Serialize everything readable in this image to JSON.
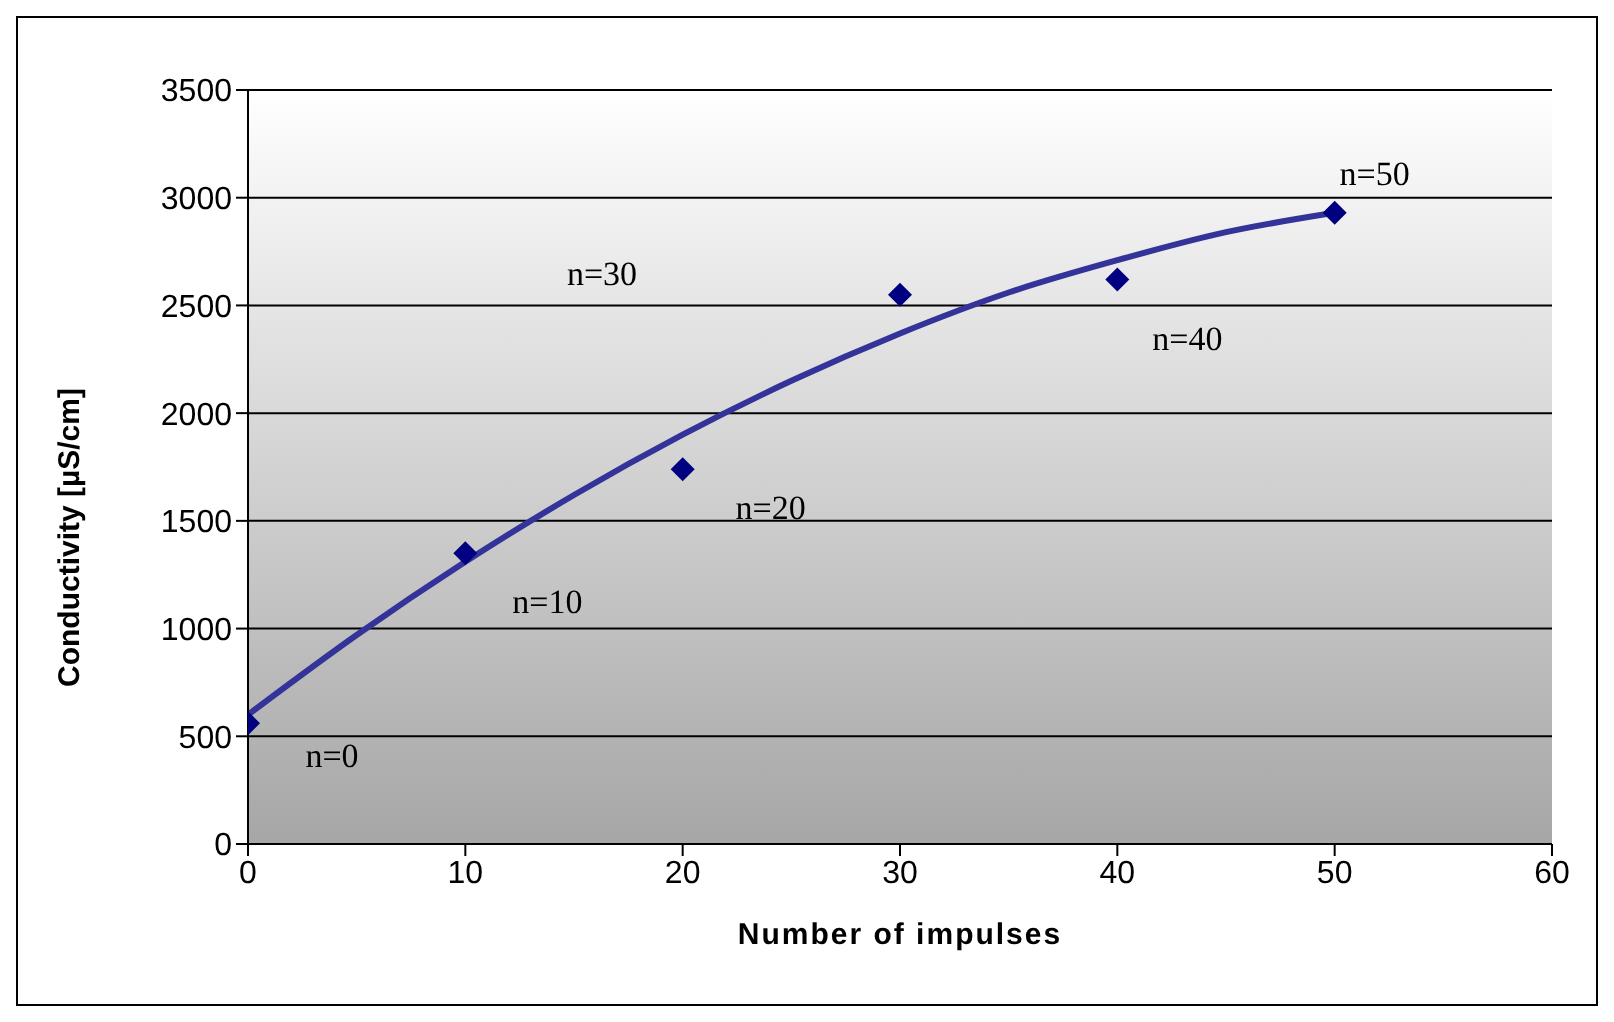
{
  "chart_data": {
    "type": "scatter",
    "xlabel": "Number of impulses",
    "ylabel": "Conductivity [µS/cm]",
    "xlim": [
      0,
      60
    ],
    "xticks": [
      0,
      10,
      20,
      30,
      40,
      50,
      60
    ],
    "ylim": [
      0,
      3500
    ],
    "yticks": [
      0,
      500,
      1000,
      1500,
      2000,
      2500,
      3000,
      3500
    ],
    "grid": "y",
    "legend": false,
    "series": [
      {
        "type": "scatter",
        "color": "#000080",
        "marker": "diamond",
        "x": [
          0,
          10,
          20,
          30,
          40,
          50
        ],
        "values": [
          560,
          1350,
          1740,
          2550,
          2620,
          2930
        ]
      },
      {
        "type": "line",
        "color": "#333399",
        "marker": "none",
        "x": [
          0,
          5,
          10,
          15,
          20,
          25,
          30,
          35,
          40,
          45,
          50
        ],
        "values": [
          600,
          970,
          1310,
          1620,
          1900,
          2150,
          2370,
          2560,
          2710,
          2840,
          2930
        ]
      }
    ],
    "annotations": [
      {
        "text": "n=0",
        "x": 0,
        "y": 560
      },
      {
        "text": "n=10",
        "x": 10,
        "y": 1350
      },
      {
        "text": "n=20",
        "x": 20,
        "y": 1740
      },
      "n=30",
      {
        "text": "n=40",
        "x": 40,
        "y": 2620
      },
      {
        "text": "n=50",
        "x": 50,
        "y": 2930
      }
    ]
  }
}
